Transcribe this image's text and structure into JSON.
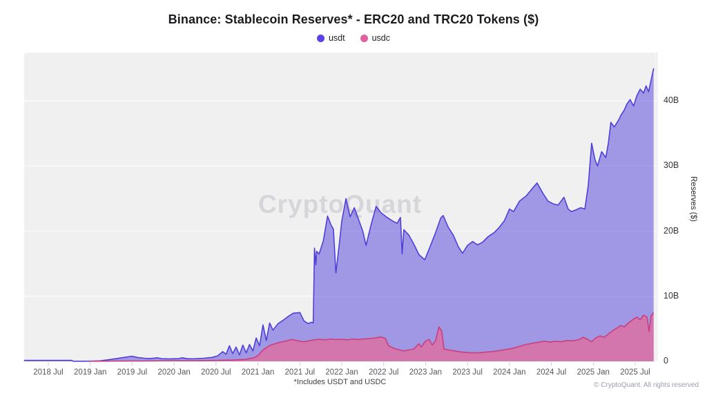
{
  "header": {
    "title": "Binance: Stablecoin Reserves* - ERC20 and TRC20 Tokens ($)",
    "watermark": "CryptoQuant"
  },
  "legend": {
    "items": [
      {
        "id": "usdt",
        "label": "usdt",
        "color": "#5b43e8"
      },
      {
        "id": "usdc",
        "label": "usdc",
        "color": "#e0619e"
      }
    ]
  },
  "footer": {
    "footnote": "*Includes USDT and USDC",
    "copyright": "© CryptoQuant. All rights reserved"
  },
  "chart_data": {
    "type": "area",
    "title": "Binance: Stablecoin Reserves* - ERC20 and TRC20 Tokens ($)",
    "xlabel": "",
    "ylabel": "Reserves ($)",
    "x_domain_years": [
      2018.21,
      2025.75
    ],
    "ylim": [
      0,
      47.5
    ],
    "grid": true,
    "legend_position": "top",
    "plot_background": "#f0f0f1",
    "gridline_color": "rgba(255,255,255,0.65)",
    "y_ticks": [
      {
        "label": "0",
        "value": 0
      },
      {
        "label": "10B",
        "value": 10
      },
      {
        "label": "20B",
        "value": 20
      },
      {
        "label": "30B",
        "value": 30
      },
      {
        "label": "40B",
        "value": 40
      }
    ],
    "x_ticks": [
      {
        "label": "2018 Jul",
        "year": 2018.5
      },
      {
        "label": "2019 Jan",
        "year": 2019.0
      },
      {
        "label": "2019 Jul",
        "year": 2019.5
      },
      {
        "label": "2020 Jan",
        "year": 2020.0
      },
      {
        "label": "2020 Jul",
        "year": 2020.5
      },
      {
        "label": "2021 Jan",
        "year": 2021.0
      },
      {
        "label": "2021 Jul",
        "year": 2021.5
      },
      {
        "label": "2022 Jan",
        "year": 2022.0
      },
      {
        "label": "2022 Jul",
        "year": 2022.5
      },
      {
        "label": "2023 Jan",
        "year": 2023.0
      },
      {
        "label": "2023 Jul",
        "year": 2023.5
      },
      {
        "label": "2024 Jan",
        "year": 2024.0
      },
      {
        "label": "2024 Jul",
        "year": 2024.5
      },
      {
        "label": "2025 Jan",
        "year": 2025.0
      },
      {
        "label": "2025 Jul",
        "year": 2025.5
      }
    ],
    "series": [
      {
        "name": "usdt",
        "unit": "B",
        "line_color": "#4f3ed8",
        "fill_color": "rgba(80,64,217,0.5)",
        "points": [
          [
            2018.21,
            0.15
          ],
          [
            2018.4,
            0.15
          ],
          [
            2018.6,
            0.15
          ],
          [
            2018.78,
            0.15
          ],
          [
            2018.8,
            0.02
          ],
          [
            2019.0,
            0.03
          ],
          [
            2019.12,
            0.08
          ],
          [
            2019.22,
            0.25
          ],
          [
            2019.32,
            0.45
          ],
          [
            2019.42,
            0.65
          ],
          [
            2019.5,
            0.8
          ],
          [
            2019.56,
            0.6
          ],
          [
            2019.65,
            0.48
          ],
          [
            2019.72,
            0.45
          ],
          [
            2019.8,
            0.55
          ],
          [
            2019.85,
            0.42
          ],
          [
            2019.95,
            0.38
          ],
          [
            2020.05,
            0.42
          ],
          [
            2020.1,
            0.55
          ],
          [
            2020.16,
            0.4
          ],
          [
            2020.25,
            0.42
          ],
          [
            2020.35,
            0.48
          ],
          [
            2020.45,
            0.6
          ],
          [
            2020.52,
            0.85
          ],
          [
            2020.58,
            1.5
          ],
          [
            2020.62,
            1.1
          ],
          [
            2020.66,
            2.4
          ],
          [
            2020.7,
            1.2
          ],
          [
            2020.74,
            2.2
          ],
          [
            2020.78,
            1.0
          ],
          [
            2020.82,
            2.5
          ],
          [
            2020.86,
            1.3
          ],
          [
            2020.9,
            2.6
          ],
          [
            2020.94,
            1.6
          ],
          [
            2020.98,
            3.6
          ],
          [
            2021.02,
            2.4
          ],
          [
            2021.06,
            5.6
          ],
          [
            2021.1,
            3.2
          ],
          [
            2021.14,
            5.9
          ],
          [
            2021.18,
            4.8
          ],
          [
            2021.24,
            5.8
          ],
          [
            2021.3,
            6.3
          ],
          [
            2021.36,
            6.9
          ],
          [
            2021.42,
            7.4
          ],
          [
            2021.5,
            7.5
          ],
          [
            2021.55,
            6.2
          ],
          [
            2021.6,
            5.8
          ],
          [
            2021.64,
            6.0
          ],
          [
            2021.66,
            5.9
          ],
          [
            2021.675,
            17.4
          ],
          [
            2021.69,
            14.8
          ],
          [
            2021.7,
            16.9
          ],
          [
            2021.73,
            16.5
          ],
          [
            2021.78,
            18.5
          ],
          [
            2021.83,
            22.3
          ],
          [
            2021.87,
            21.0
          ],
          [
            2021.9,
            20.3
          ],
          [
            2021.93,
            13.6
          ],
          [
            2021.97,
            18.0
          ],
          [
            2022.0,
            21.5
          ],
          [
            2022.05,
            25.0
          ],
          [
            2022.1,
            22.2
          ],
          [
            2022.15,
            23.6
          ],
          [
            2022.2,
            21.8
          ],
          [
            2022.25,
            20.0
          ],
          [
            2022.29,
            17.8
          ],
          [
            2022.35,
            21.0
          ],
          [
            2022.41,
            23.8
          ],
          [
            2022.47,
            22.8
          ],
          [
            2022.53,
            22.2
          ],
          [
            2022.6,
            21.6
          ],
          [
            2022.66,
            21.2
          ],
          [
            2022.7,
            22.1
          ],
          [
            2022.72,
            16.5
          ],
          [
            2022.74,
            20.2
          ],
          [
            2022.8,
            19.4
          ],
          [
            2022.86,
            18.0
          ],
          [
            2022.92,
            16.4
          ],
          [
            2022.99,
            15.6
          ],
          [
            2023.05,
            17.5
          ],
          [
            2023.12,
            19.8
          ],
          [
            2023.18,
            22.0
          ],
          [
            2023.21,
            22.4
          ],
          [
            2023.27,
            20.6
          ],
          [
            2023.33,
            19.4
          ],
          [
            2023.39,
            17.6
          ],
          [
            2023.44,
            16.6
          ],
          [
            2023.5,
            17.8
          ],
          [
            2023.56,
            18.4
          ],
          [
            2023.62,
            17.9
          ],
          [
            2023.68,
            18.3
          ],
          [
            2023.75,
            19.2
          ],
          [
            2023.82,
            19.8
          ],
          [
            2023.88,
            20.6
          ],
          [
            2023.94,
            21.6
          ],
          [
            2024.0,
            23.4
          ],
          [
            2024.05,
            23.0
          ],
          [
            2024.12,
            24.6
          ],
          [
            2024.2,
            25.4
          ],
          [
            2024.27,
            26.5
          ],
          [
            2024.33,
            27.4
          ],
          [
            2024.4,
            25.8
          ],
          [
            2024.46,
            24.6
          ],
          [
            2024.52,
            24.2
          ],
          [
            2024.58,
            24.0
          ],
          [
            2024.65,
            25.2
          ],
          [
            2024.7,
            23.4
          ],
          [
            2024.74,
            23.0
          ],
          [
            2024.8,
            23.3
          ],
          [
            2024.85,
            23.6
          ],
          [
            2024.9,
            23.4
          ],
          [
            2024.94,
            27.0
          ],
          [
            2024.98,
            33.5
          ],
          [
            2025.02,
            31.0
          ],
          [
            2025.05,
            30.0
          ],
          [
            2025.1,
            32.2
          ],
          [
            2025.15,
            31.3
          ],
          [
            2025.18,
            33.5
          ],
          [
            2025.21,
            36.7
          ],
          [
            2025.25,
            36.0
          ],
          [
            2025.3,
            37.0
          ],
          [
            2025.33,
            37.8
          ],
          [
            2025.37,
            38.6
          ],
          [
            2025.4,
            39.5
          ],
          [
            2025.44,
            40.2
          ],
          [
            2025.48,
            39.2
          ],
          [
            2025.52,
            40.8
          ],
          [
            2025.56,
            41.8
          ],
          [
            2025.6,
            41.2
          ],
          [
            2025.63,
            42.3
          ],
          [
            2025.66,
            41.4
          ],
          [
            2025.69,
            43.2
          ],
          [
            2025.72,
            45.0
          ]
        ]
      },
      {
        "name": "usdc",
        "unit": "B",
        "line_color": "#cb3d7c",
        "fill_color": "rgba(225,110,160,0.8)",
        "points": [
          [
            2019.0,
            0.02
          ],
          [
            2019.3,
            0.04
          ],
          [
            2019.6,
            0.06
          ],
          [
            2019.9,
            0.08
          ],
          [
            2020.2,
            0.1
          ],
          [
            2020.5,
            0.15
          ],
          [
            2020.7,
            0.2
          ],
          [
            2020.85,
            0.3
          ],
          [
            2020.95,
            0.55
          ],
          [
            2021.0,
            0.9
          ],
          [
            2021.05,
            1.6
          ],
          [
            2021.1,
            2.1
          ],
          [
            2021.15,
            2.5
          ],
          [
            2021.2,
            2.7
          ],
          [
            2021.27,
            2.95
          ],
          [
            2021.33,
            3.1
          ],
          [
            2021.4,
            3.35
          ],
          [
            2021.45,
            3.25
          ],
          [
            2021.5,
            3.1
          ],
          [
            2021.55,
            3.0
          ],
          [
            2021.6,
            3.15
          ],
          [
            2021.67,
            3.3
          ],
          [
            2021.73,
            3.4
          ],
          [
            2021.8,
            3.3
          ],
          [
            2021.87,
            3.45
          ],
          [
            2021.93,
            3.35
          ],
          [
            2022.0,
            3.4
          ],
          [
            2022.07,
            3.3
          ],
          [
            2022.13,
            3.45
          ],
          [
            2022.2,
            3.35
          ],
          [
            2022.27,
            3.45
          ],
          [
            2022.33,
            3.5
          ],
          [
            2022.4,
            3.6
          ],
          [
            2022.47,
            3.75
          ],
          [
            2022.52,
            3.5
          ],
          [
            2022.56,
            2.4
          ],
          [
            2022.62,
            2.0
          ],
          [
            2022.68,
            1.8
          ],
          [
            2022.73,
            1.6
          ],
          [
            2022.8,
            1.75
          ],
          [
            2022.86,
            1.9
          ],
          [
            2022.92,
            2.7
          ],
          [
            2022.95,
            2.2
          ],
          [
            2022.99,
            3.0
          ],
          [
            2023.04,
            3.4
          ],
          [
            2023.08,
            2.5
          ],
          [
            2023.12,
            3.2
          ],
          [
            2023.16,
            5.3
          ],
          [
            2023.19,
            4.7
          ],
          [
            2023.22,
            1.9
          ],
          [
            2023.28,
            1.75
          ],
          [
            2023.35,
            1.6
          ],
          [
            2023.42,
            1.45
          ],
          [
            2023.5,
            1.35
          ],
          [
            2023.58,
            1.3
          ],
          [
            2023.66,
            1.35
          ],
          [
            2023.74,
            1.45
          ],
          [
            2023.82,
            1.55
          ],
          [
            2023.9,
            1.7
          ],
          [
            2023.97,
            1.85
          ],
          [
            2024.04,
            2.0
          ],
          [
            2024.12,
            2.3
          ],
          [
            2024.2,
            2.6
          ],
          [
            2024.28,
            2.8
          ],
          [
            2024.35,
            2.95
          ],
          [
            2024.42,
            3.1
          ],
          [
            2024.48,
            2.95
          ],
          [
            2024.55,
            3.1
          ],
          [
            2024.62,
            3.0
          ],
          [
            2024.68,
            3.2
          ],
          [
            2024.75,
            3.15
          ],
          [
            2024.82,
            3.3
          ],
          [
            2024.88,
            3.7
          ],
          [
            2024.93,
            3.4
          ],
          [
            2024.98,
            3.0
          ],
          [
            2025.03,
            3.6
          ],
          [
            2025.08,
            3.9
          ],
          [
            2025.13,
            3.7
          ],
          [
            2025.18,
            4.2
          ],
          [
            2025.23,
            4.7
          ],
          [
            2025.28,
            5.1
          ],
          [
            2025.33,
            5.5
          ],
          [
            2025.37,
            5.3
          ],
          [
            2025.42,
            5.9
          ],
          [
            2025.47,
            6.4
          ],
          [
            2025.52,
            6.8
          ],
          [
            2025.56,
            6.4
          ],
          [
            2025.6,
            7.1
          ],
          [
            2025.64,
            6.8
          ],
          [
            2025.665,
            4.6
          ],
          [
            2025.69,
            7.0
          ],
          [
            2025.72,
            7.5
          ]
        ]
      }
    ]
  }
}
